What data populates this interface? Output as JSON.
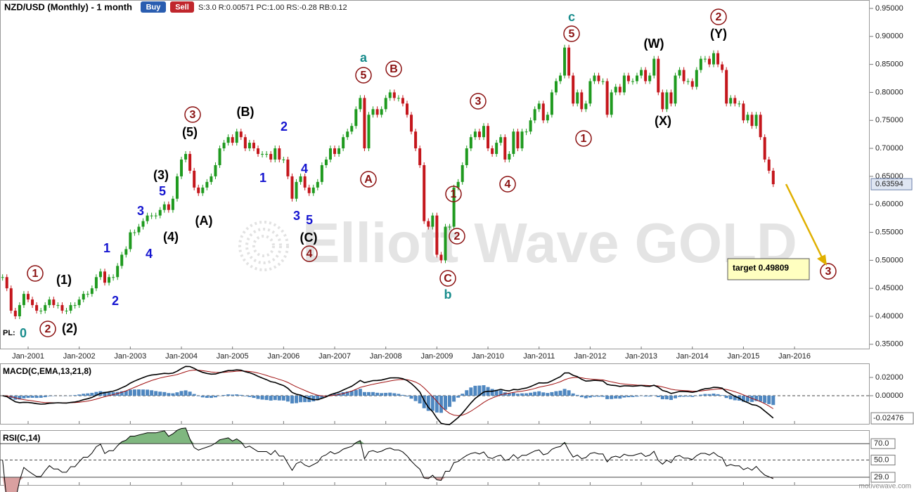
{
  "chart_data": {
    "type": "candlestick",
    "title": "NZD/USD (Monthly) - 1 month",
    "buttons": [
      "Buy",
      "Sell"
    ],
    "stats": "S:3.0 R:0.00571 PC:1.00 RS:-0.28 RB:0.12",
    "pl_label": "PL:",
    "watermark": "Elliott Wave GOLD",
    "footer": "motivewave.com",
    "up_color": "#1f9a1f",
    "down_color": "#c4161c",
    "series": [
      {
        "name": "NZD/USD",
        "values": [
          0.47,
          0.45,
          0.41,
          0.4,
          0.42,
          0.44,
          0.43,
          0.42,
          0.41,
          0.41,
          0.42,
          0.43,
          0.42,
          0.42,
          0.41,
          0.41,
          0.42,
          0.42,
          0.43,
          0.44,
          0.44,
          0.45,
          0.47,
          0.48,
          0.46,
          0.47,
          0.47,
          0.49,
          0.51,
          0.52,
          0.55,
          0.55,
          0.56,
          0.57,
          0.58,
          0.58,
          0.58,
          0.59,
          0.6,
          0.59,
          0.61,
          0.65,
          0.68,
          0.69,
          0.66,
          0.63,
          0.62,
          0.63,
          0.64,
          0.65,
          0.67,
          0.7,
          0.71,
          0.72,
          0.71,
          0.73,
          0.72,
          0.7,
          0.71,
          0.7,
          0.69,
          0.69,
          0.69,
          0.68,
          0.7,
          0.68,
          0.68,
          0.65,
          0.61,
          0.64,
          0.65,
          0.63,
          0.62,
          0.63,
          0.64,
          0.67,
          0.68,
          0.7,
          0.69,
          0.7,
          0.72,
          0.73,
          0.74,
          0.77,
          0.79,
          0.7,
          0.76,
          0.77,
          0.76,
          0.77,
          0.79,
          0.8,
          0.79,
          0.79,
          0.78,
          0.76,
          0.73,
          0.7,
          0.67,
          0.57,
          0.56,
          0.58,
          0.51,
          0.5,
          0.56,
          0.56,
          0.63,
          0.64,
          0.67,
          0.7,
          0.72,
          0.73,
          0.72,
          0.74,
          0.7,
          0.69,
          0.71,
          0.72,
          0.68,
          0.69,
          0.73,
          0.7,
          0.73,
          0.73,
          0.75,
          0.77,
          0.78,
          0.75,
          0.76,
          0.8,
          0.82,
          0.83,
          0.88,
          0.83,
          0.78,
          0.8,
          0.77,
          0.78,
          0.82,
          0.83,
          0.82,
          0.82,
          0.76,
          0.8,
          0.81,
          0.8,
          0.83,
          0.82,
          0.82,
          0.83,
          0.84,
          0.82,
          0.83,
          0.86,
          0.8,
          0.77,
          0.8,
          0.78,
          0.83,
          0.84,
          0.82,
          0.82,
          0.81,
          0.84,
          0.86,
          0.86,
          0.85,
          0.87,
          0.85,
          0.84,
          0.78,
          0.79,
          0.78,
          0.78,
          0.75,
          0.76,
          0.74,
          0.76,
          0.72,
          0.68,
          0.66,
          0.63594
        ]
      }
    ],
    "current_price": {
      "value": 0.63594,
      "label": "0.63594"
    },
    "ylim": [
      0.341,
      0.965
    ],
    "yticks": [
      {
        "value": 0.35,
        "label": "0.35000"
      },
      {
        "value": 0.4,
        "label": "0.40000"
      },
      {
        "value": 0.45,
        "label": "0.45000"
      },
      {
        "value": 0.5,
        "label": "0.50000"
      },
      {
        "value": 0.55,
        "label": "0.55000"
      },
      {
        "value": 0.6,
        "label": "0.60000"
      },
      {
        "value": 0.65,
        "label": "0.65000"
      },
      {
        "value": 0.7,
        "label": "0.70000"
      },
      {
        "value": 0.75,
        "label": "0.75000"
      },
      {
        "value": 0.8,
        "label": "0.80000"
      },
      {
        "value": 0.85,
        "label": "0.85000"
      },
      {
        "value": 0.9,
        "label": "0.90000"
      },
      {
        "value": 0.95,
        "label": "0.95000"
      }
    ],
    "xticks": [
      "Jan-2001",
      "Jan-2002",
      "Jan-2003",
      "Jan-2004",
      "Jan-2005",
      "Jan-2006",
      "Jan-2007",
      "Jan-2008",
      "Jan-2009",
      "Jan-2010",
      "Jan-2011",
      "Jan-2012",
      "Jan-2013",
      "Jan-2014",
      "Jan-2015",
      "Jan-2016"
    ],
    "target": {
      "label": "target 0.49809",
      "value": 0.49809
    },
    "annotations": [
      {
        "text": "0",
        "color": "#188c8c",
        "circled": false
      },
      {
        "text": "1",
        "color": "#8b1111",
        "circled": true
      },
      {
        "text": "2",
        "color": "#8b1111",
        "circled": true
      },
      {
        "text": "(1)",
        "color": "#000000",
        "circled": false
      },
      {
        "text": "(2)",
        "color": "#000000",
        "circled": false
      },
      {
        "text": "1",
        "color": "#1515d0",
        "circled": false
      },
      {
        "text": "2",
        "color": "#1515d0",
        "circled": false
      },
      {
        "text": "3",
        "color": "#1515d0",
        "circled": false
      },
      {
        "text": "4",
        "color": "#1515d0",
        "circled": false
      },
      {
        "text": "5",
        "color": "#1515d0",
        "circled": false
      },
      {
        "text": "(3)",
        "color": "#000000",
        "circled": false
      },
      {
        "text": "(4)",
        "color": "#000000",
        "circled": false
      },
      {
        "text": "3",
        "color": "#8b1111",
        "circled": true
      },
      {
        "text": "(5)",
        "color": "#000000",
        "circled": false
      },
      {
        "text": "(A)",
        "color": "#000000",
        "circled": false
      },
      {
        "text": "(B)",
        "color": "#000000",
        "circled": false
      },
      {
        "text": "2",
        "color": "#1515d0",
        "circled": false
      },
      {
        "text": "1",
        "color": "#1515d0",
        "circled": false
      },
      {
        "text": "4",
        "color": "#1515d0",
        "circled": false
      },
      {
        "text": "3",
        "color": "#1515d0",
        "circled": false
      },
      {
        "text": "5",
        "color": "#1515d0",
        "circled": false
      },
      {
        "text": "(C)",
        "color": "#000000",
        "circled": false
      },
      {
        "text": "4",
        "color": "#8b1111",
        "circled": true
      },
      {
        "text": "a",
        "color": "#188c8c",
        "circled": false
      },
      {
        "text": "5",
        "color": "#8b1111",
        "circled": true
      },
      {
        "text": "B",
        "color": "#8b1111",
        "circled": true
      },
      {
        "text": "A",
        "color": "#8b1111",
        "circled": true
      },
      {
        "text": "C",
        "color": "#8b1111",
        "circled": true
      },
      {
        "text": "b",
        "color": "#188c8c",
        "circled": false
      },
      {
        "text": "1",
        "color": "#8b1111",
        "circled": true
      },
      {
        "text": "2",
        "color": "#8b1111",
        "circled": true
      },
      {
        "text": "3",
        "color": "#8b1111",
        "circled": true
      },
      {
        "text": "4",
        "color": "#8b1111",
        "circled": true
      },
      {
        "text": "c",
        "color": "#188c8c",
        "circled": false
      },
      {
        "text": "5",
        "color": "#8b1111",
        "circled": true
      },
      {
        "text": "1",
        "color": "#8b1111",
        "circled": true
      },
      {
        "text": "(W)",
        "color": "#000000",
        "circled": false
      },
      {
        "text": "(X)",
        "color": "#000000",
        "circled": false
      },
      {
        "text": "2",
        "color": "#8b1111",
        "circled": true
      },
      {
        "text": "(Y)",
        "color": "#000000",
        "circled": false
      },
      {
        "text": "3",
        "color": "#8b1111",
        "circled": true
      }
    ],
    "macd": {
      "title": "MACD(C,EMA,13,21,8)",
      "fast": 13,
      "slow": 21,
      "signal": 8,
      "ylim": [
        -0.0308,
        0.0354
      ],
      "yticks": [
        {
          "value": 0.02,
          "label": "0.02000"
        },
        {
          "value": 0,
          "label": "0.00000"
        }
      ],
      "current": {
        "value": -0.02476,
        "label": "-0.02476"
      },
      "line_color": "#000000",
      "signal_color": "#a01010",
      "hist_color": "#4f87c0"
    },
    "rsi": {
      "title": "RSI(C,14)",
      "period": 14,
      "ylim": [
        19.6,
        86.5
      ],
      "yticks": [
        {
          "value": 70,
          "label": "70.0"
        },
        {
          "value": 50,
          "label": "50.0"
        },
        {
          "value": 29,
          "label": "29.0"
        }
      ],
      "line_color": "#000000",
      "over_color": "#7fb77f",
      "under_color": "#d9a0a0"
    }
  }
}
